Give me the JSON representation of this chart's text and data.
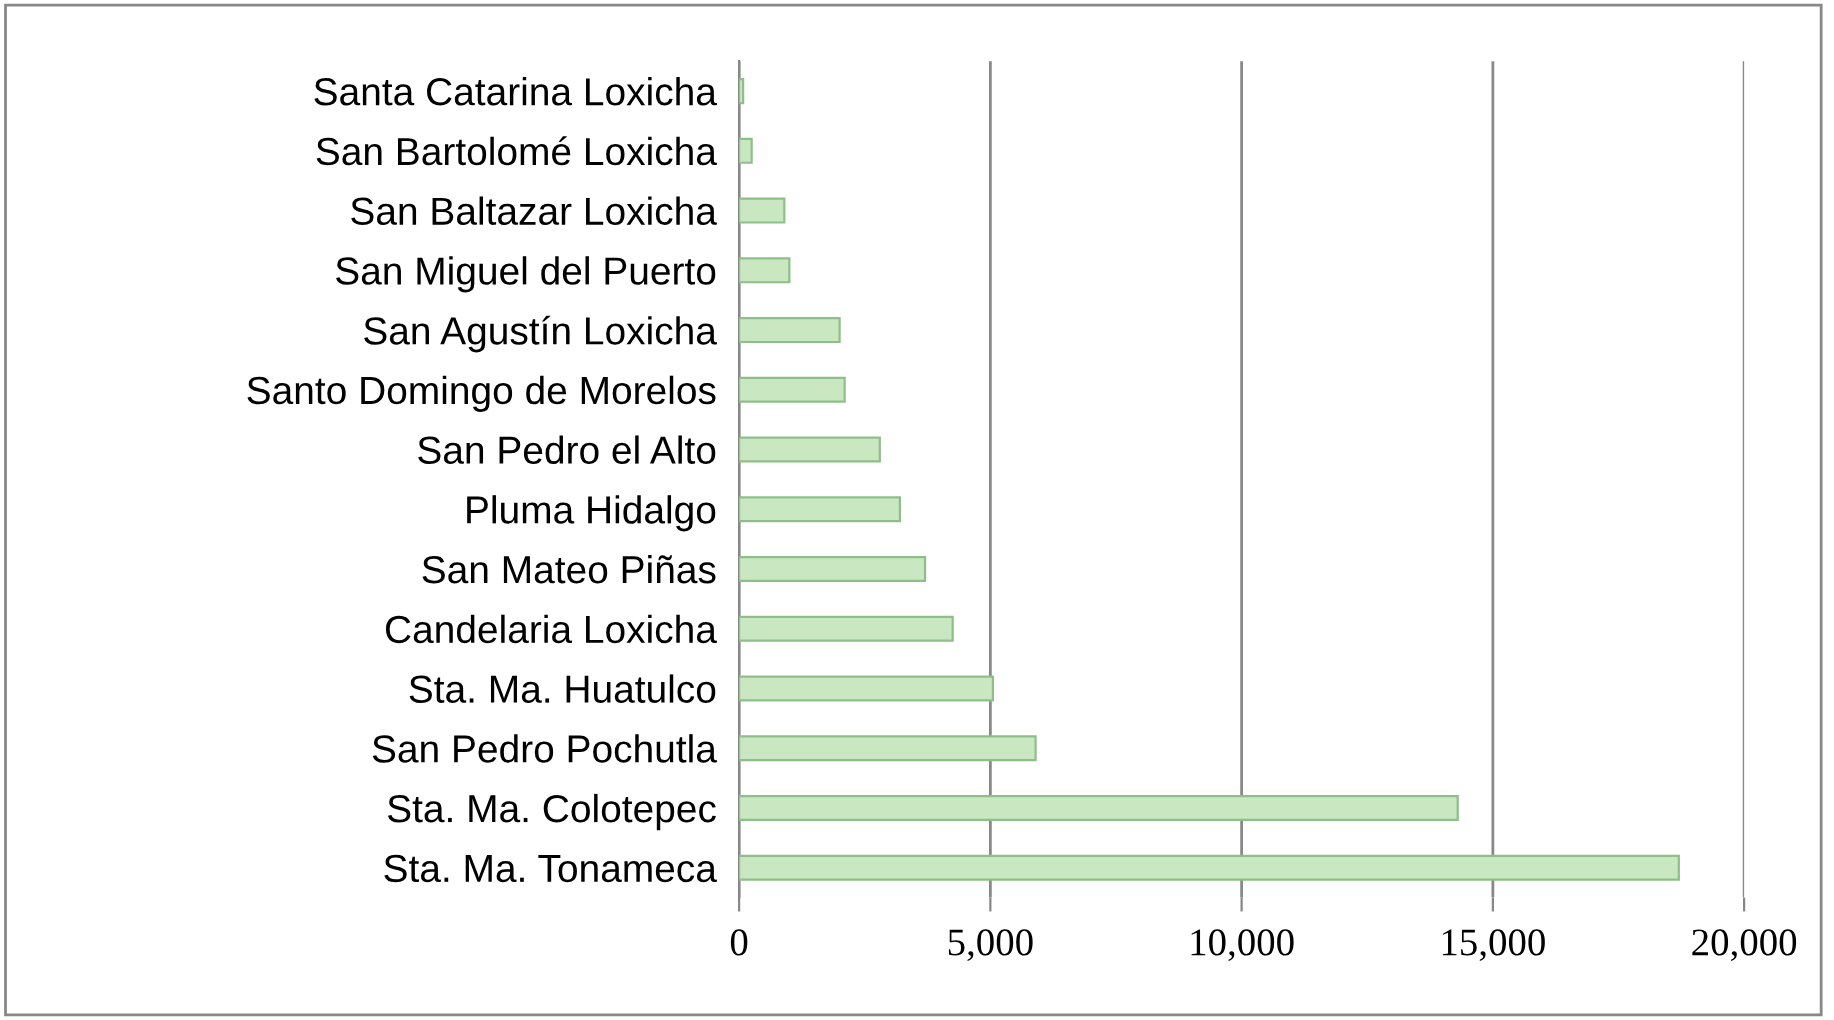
{
  "chart_data": {
    "type": "bar",
    "orientation": "horizontal",
    "categories": [
      "Santa Catarina Loxicha",
      "San Bartolomé Loxicha",
      "San Baltazar Loxicha",
      "San Miguel del Puerto",
      "San Agustín Loxicha",
      "Santo Domingo de Morelos",
      "San Pedro el Alto",
      "Pluma Hidalgo",
      "San Mateo Piñas",
      "Candelaria Loxicha",
      "Sta. Ma. Huatulco",
      "San Pedro Pochutla",
      "Sta. Ma. Colotepec",
      "Sta. Ma. Tonameca"
    ],
    "values": [
      80,
      250,
      900,
      1000,
      2000,
      2100,
      2800,
      3200,
      3700,
      4250,
      5050,
      5900,
      14300,
      18700
    ],
    "color": "#c9e8c2",
    "xlim": [
      0,
      20000
    ],
    "xticks": [
      {
        "value": 0,
        "label": "0"
      },
      {
        "value": 5000,
        "label": "5,000"
      },
      {
        "value": 10000,
        "label": "10,000"
      },
      {
        "value": 15000,
        "label": "15,000"
      },
      {
        "value": 20000,
        "label": "20,000"
      }
    ],
    "grid": "x"
  }
}
